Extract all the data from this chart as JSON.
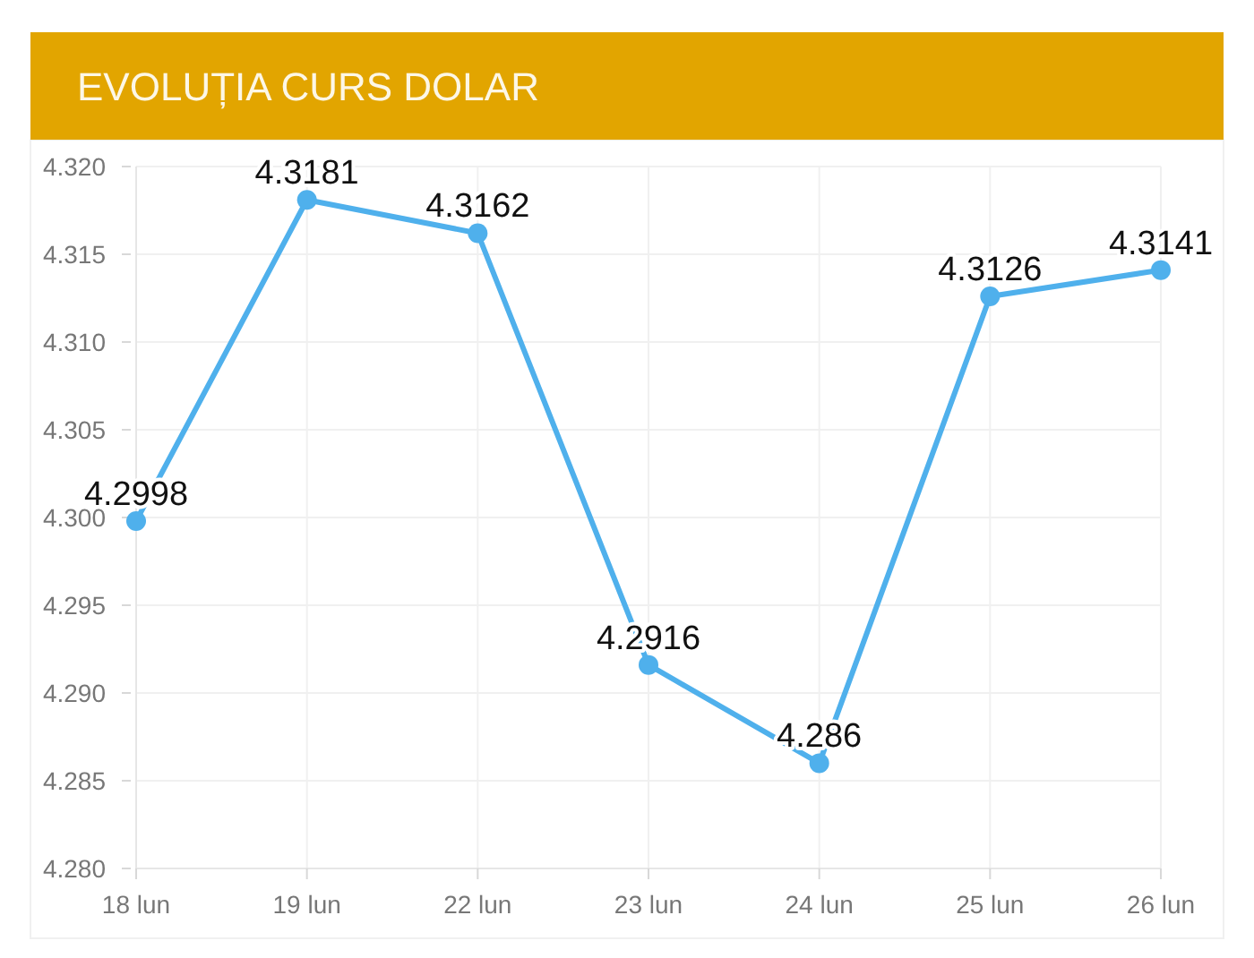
{
  "chart_data": {
    "type": "line",
    "title": "EVOLUȚIA CURS DOLAR",
    "categories": [
      "18 lun",
      "19 lun",
      "22 lun",
      "23 lun",
      "24 lun",
      "25 lun",
      "26 lun"
    ],
    "series": [
      {
        "color": "#4fb0ec",
        "values": [
          4.2998,
          4.3181,
          4.3162,
          4.2916,
          4.286,
          4.3126,
          4.3141
        ]
      }
    ],
    "ylim": [
      4.28,
      4.32
    ],
    "yticks": [
      {
        "value": 4.28,
        "label": "4.280"
      },
      {
        "value": 4.285,
        "label": "4.285"
      },
      {
        "value": 4.29,
        "label": "4.290"
      },
      {
        "value": 4.295,
        "label": "4.295"
      },
      {
        "value": 4.3,
        "label": "4.300"
      },
      {
        "value": 4.305,
        "label": "4.305"
      },
      {
        "value": 4.31,
        "label": "4.310"
      },
      {
        "value": 4.315,
        "label": "4.315"
      },
      {
        "value": 4.32,
        "label": "4.320"
      }
    ],
    "grid": true,
    "marker": "circle",
    "line_style": "solid",
    "data_labels": true
  }
}
